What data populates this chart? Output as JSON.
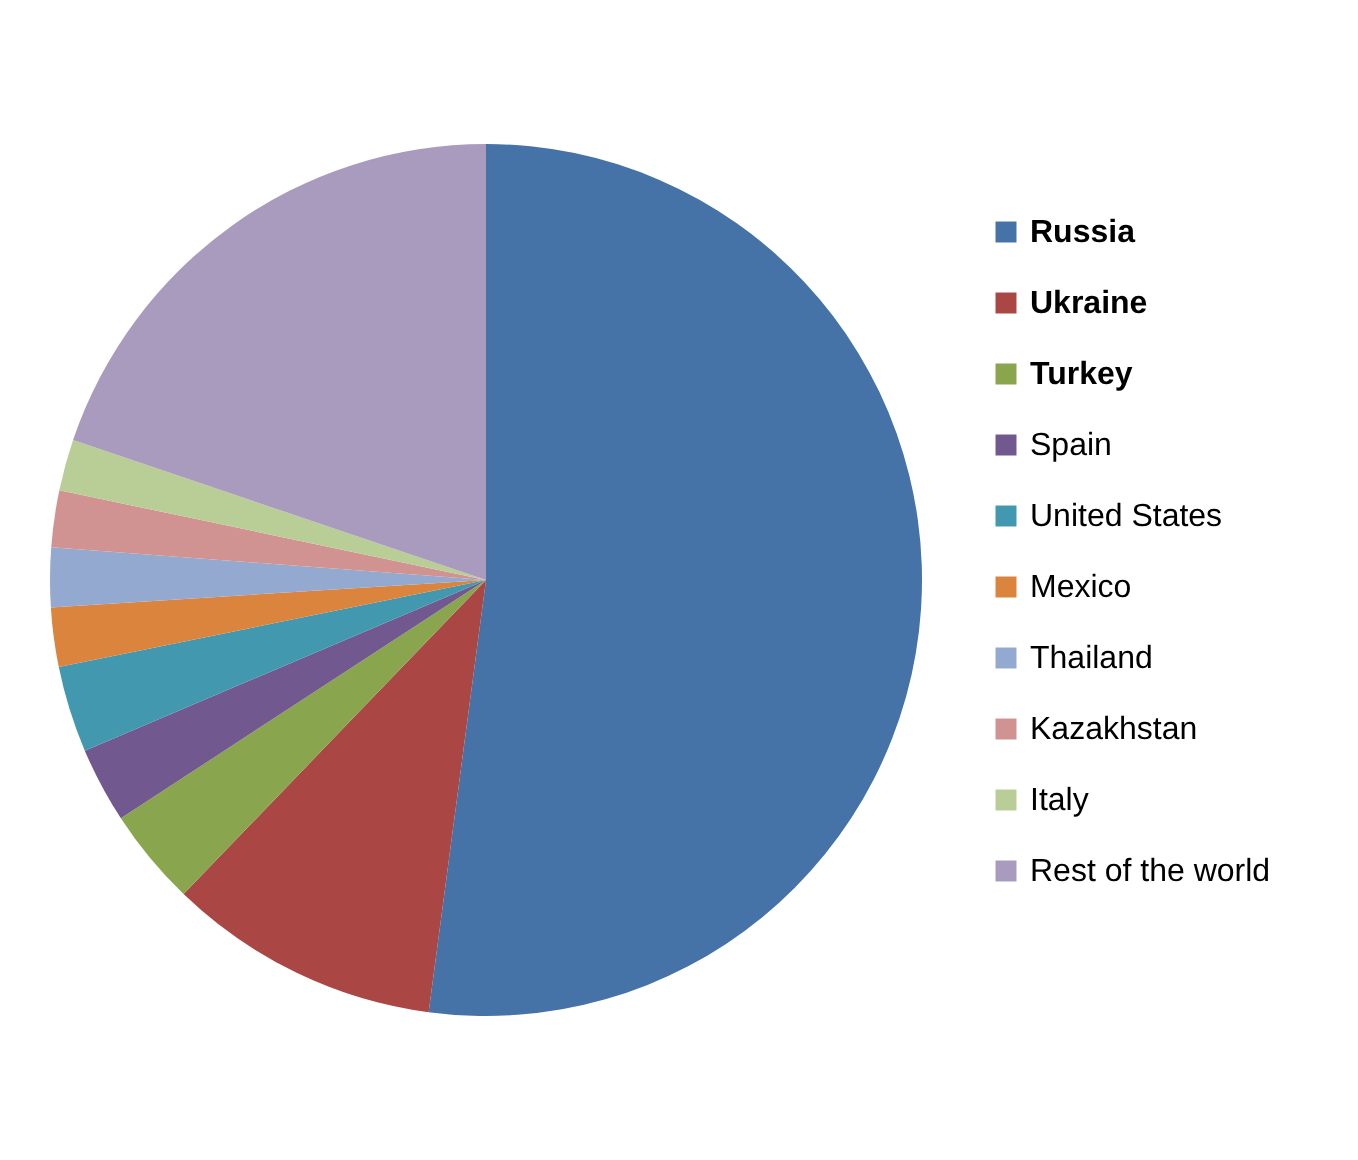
{
  "chart_data": {
    "type": "pie",
    "categories": [
      "Russia",
      "Ukraine",
      "Turkey",
      "Spain",
      "United States",
      "Mexico",
      "Thailand",
      "Kazakhstan",
      "Italy",
      "Rest of the world"
    ],
    "values": [
      52.1,
      10.1,
      3.6,
      2.8,
      3.2,
      2.2,
      2.2,
      2.1,
      1.9,
      19.8
    ],
    "colors": [
      "#4572a7",
      "#aa4643",
      "#89a54e",
      "#71588f",
      "#4198af",
      "#db843d",
      "#93a9cf",
      "#d19392",
      "#b9cd96",
      "#a99bbd"
    ],
    "legend": "right"
  }
}
